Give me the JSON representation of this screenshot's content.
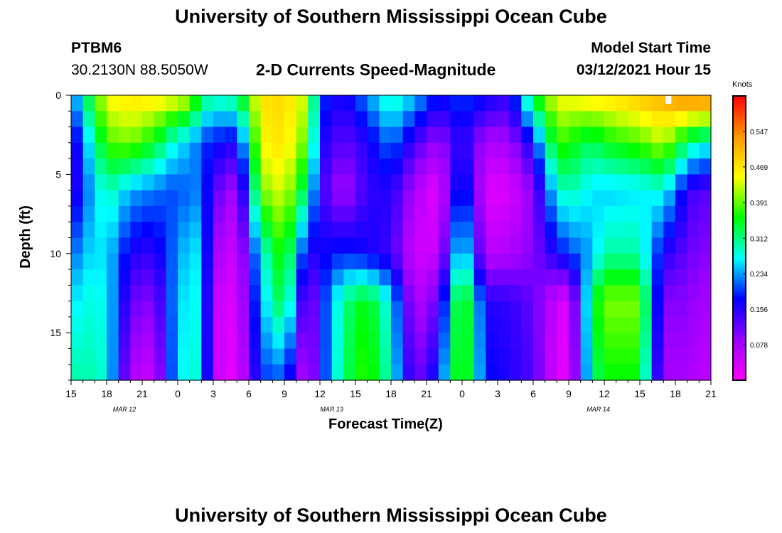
{
  "page": {
    "title": "University of Southern Mississippi Ocean Cube",
    "footer_title": "University of Southern Mississippi Ocean Cube",
    "station_id": "PTBM6",
    "station_coords": "30.2130N 88.5050W",
    "chart_title": "2-D Currents Speed-Magnitude",
    "model_start_label": "Model Start Time",
    "model_start_value": "03/12/2021 Hour 15"
  },
  "chart_data": {
    "type": "heatmap",
    "title": "2-D Currents Speed-Magnitude",
    "xlabel": "Forecast Time(Z)",
    "ylabel": "Depth (ft)",
    "x_tick_labels": [
      "15",
      "18",
      "21",
      "0",
      "3",
      "6",
      "9",
      "12",
      "15",
      "18",
      "21",
      "0",
      "3",
      "6",
      "9",
      "12",
      "15",
      "18",
      "21"
    ],
    "x_date_labels": [
      "MAR 12",
      "MAR 13",
      "MAR 14"
    ],
    "x_hours_from_start": [
      0,
      54
    ],
    "y_tick_labels": [
      "0",
      "5",
      "10",
      "15"
    ],
    "ylim": [
      0,
      18
    ],
    "y_reversed": true,
    "colorbar": {
      "unit": "Knots",
      "tick_labels": [
        "0.547",
        "0.469",
        "0.391",
        "0.312",
        "0.234",
        "0.156",
        "0.078"
      ],
      "tick_values": [
        0.547,
        0.469,
        0.391,
        0.312,
        0.234,
        0.156,
        0.078
      ],
      "range": [
        0,
        0.625
      ],
      "colormap": [
        "#ff00ff",
        "#9900ff",
        "#0000ff",
        "#00ffff",
        "#00ff00",
        "#ffff00",
        "#ff9900",
        "#ff0000"
      ]
    },
    "grid": {
      "columns": 54,
      "rows": 18,
      "dx_hours": 1,
      "dy_ft": 1
    },
    "anchor_depths_ft": [
      0,
      3,
      6,
      10,
      13,
      17.5
    ],
    "anchor_columns": [
      {
        "hour": 0,
        "speed": [
          0.2,
          0.13,
          0.13,
          0.2,
          0.25,
          0.29
        ]
      },
      {
        "hour": 1,
        "speed": [
          0.3,
          0.22,
          0.2,
          0.25,
          0.28,
          0.3
        ]
      },
      {
        "hour": 3,
        "speed": [
          0.45,
          0.38,
          0.3,
          0.26,
          0.27,
          0.28
        ]
      },
      {
        "hour": 5,
        "speed": [
          0.47,
          0.4,
          0.24,
          0.16,
          0.12,
          0.07
        ]
      },
      {
        "hour": 7,
        "speed": [
          0.47,
          0.35,
          0.22,
          0.15,
          0.1,
          0.05
        ]
      },
      {
        "hour": 9,
        "speed": [
          0.45,
          0.26,
          0.2,
          0.23,
          0.25,
          0.26
        ]
      },
      {
        "hour": 10,
        "speed": [
          0.43,
          0.25,
          0.22,
          0.26,
          0.27,
          0.28
        ]
      },
      {
        "hour": 11,
        "speed": [
          0.33,
          0.2,
          0.22,
          0.26,
          0.27,
          0.28
        ]
      },
      {
        "hour": 12,
        "speed": [
          0.3,
          0.18,
          0.13,
          0.08,
          0.05,
          0.05
        ]
      },
      {
        "hour": 14,
        "speed": [
          0.32,
          0.16,
          0.07,
          0.04,
          0.03,
          0.02
        ]
      },
      {
        "hour": 16,
        "speed": [
          0.47,
          0.45,
          0.4,
          0.27,
          0.24,
          0.2
        ]
      },
      {
        "hour": 18,
        "speed": [
          0.48,
          0.47,
          0.44,
          0.38,
          0.35,
          0.22
        ]
      },
      {
        "hour": 20,
        "speed": [
          0.42,
          0.38,
          0.3,
          0.15,
          0.07,
          0.04
        ]
      },
      {
        "hour": 21,
        "speed": [
          0.2,
          0.17,
          0.15,
          0.17,
          0.17,
          0.17
        ]
      },
      {
        "hour": 23,
        "speed": [
          0.16,
          0.12,
          0.07,
          0.19,
          0.31,
          0.32
        ]
      },
      {
        "hour": 25,
        "speed": [
          0.23,
          0.16,
          0.15,
          0.17,
          0.36,
          0.38
        ]
      },
      {
        "hour": 27,
        "speed": [
          0.3,
          0.22,
          0.16,
          0.14,
          0.26,
          0.28
        ]
      },
      {
        "hour": 29,
        "speed": [
          0.25,
          0.14,
          0.07,
          0.04,
          0.06,
          0.1
        ]
      },
      {
        "hour": 31,
        "speed": [
          0.18,
          0.08,
          0.02,
          0.05,
          0.12,
          0.18
        ]
      },
      {
        "hour": 33,
        "speed": [
          0.2,
          0.17,
          0.22,
          0.3,
          0.4,
          0.4
        ]
      },
      {
        "hour": 35,
        "speed": [
          0.18,
          0.07,
          0.03,
          0.06,
          0.16,
          0.18
        ]
      },
      {
        "hour": 37,
        "speed": [
          0.15,
          0.08,
          0.03,
          0.07,
          0.15,
          0.16
        ]
      },
      {
        "hour": 39,
        "speed": [
          0.35,
          0.18,
          0.1,
          0.1,
          0.12,
          0.13
        ]
      },
      {
        "hour": 41,
        "speed": [
          0.45,
          0.38,
          0.28,
          0.17,
          0.04,
          0.03
        ]
      },
      {
        "hour": 42,
        "speed": [
          0.45,
          0.36,
          0.3,
          0.2,
          0.03,
          0.02
        ]
      },
      {
        "hour": 44,
        "speed": [
          0.47,
          0.32,
          0.26,
          0.24,
          0.33,
          0.31
        ]
      },
      {
        "hour": 45,
        "speed": [
          0.47,
          0.35,
          0.25,
          0.3,
          0.4,
          0.36
        ]
      },
      {
        "hour": 48,
        "speed": [
          0.5,
          0.38,
          0.26,
          0.3,
          0.4,
          0.36
        ]
      },
      {
        "hour": 50,
        "speed": [
          0.52,
          0.42,
          0.28,
          0.16,
          0.1,
          0.08
        ]
      },
      {
        "hour": 52,
        "speed": [
          0.56,
          0.32,
          0.15,
          0.12,
          0.1,
          0.08
        ]
      },
      {
        "hour": 53,
        "speed": [
          0.56,
          0.28,
          0.13,
          0.1,
          0.08,
          0.06
        ]
      },
      {
        "hour": 54,
        "speed": [
          0.56,
          0.28,
          0.13,
          0.1,
          0.08,
          0.06
        ]
      }
    ],
    "missing_cell": {
      "hour": 50,
      "depth_ft": 0
    }
  }
}
